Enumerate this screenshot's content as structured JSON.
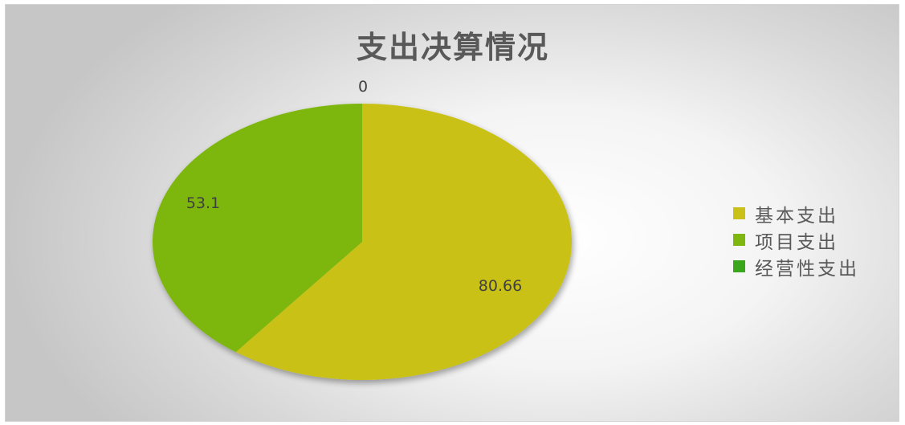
{
  "chart_data": {
    "type": "pie",
    "title": "支出决算情况",
    "categories": [
      "基本支出",
      "项目支出",
      "经营性支出"
    ],
    "values": [
      80.66,
      53.1,
      0
    ],
    "data_labels": [
      "80.66",
      "53.1",
      "0"
    ],
    "colors": [
      "#c9c117",
      "#7db70f",
      "#3aa61b"
    ],
    "legend_placement": "right",
    "start_angle_deg": 0,
    "direction": "clockwise"
  }
}
